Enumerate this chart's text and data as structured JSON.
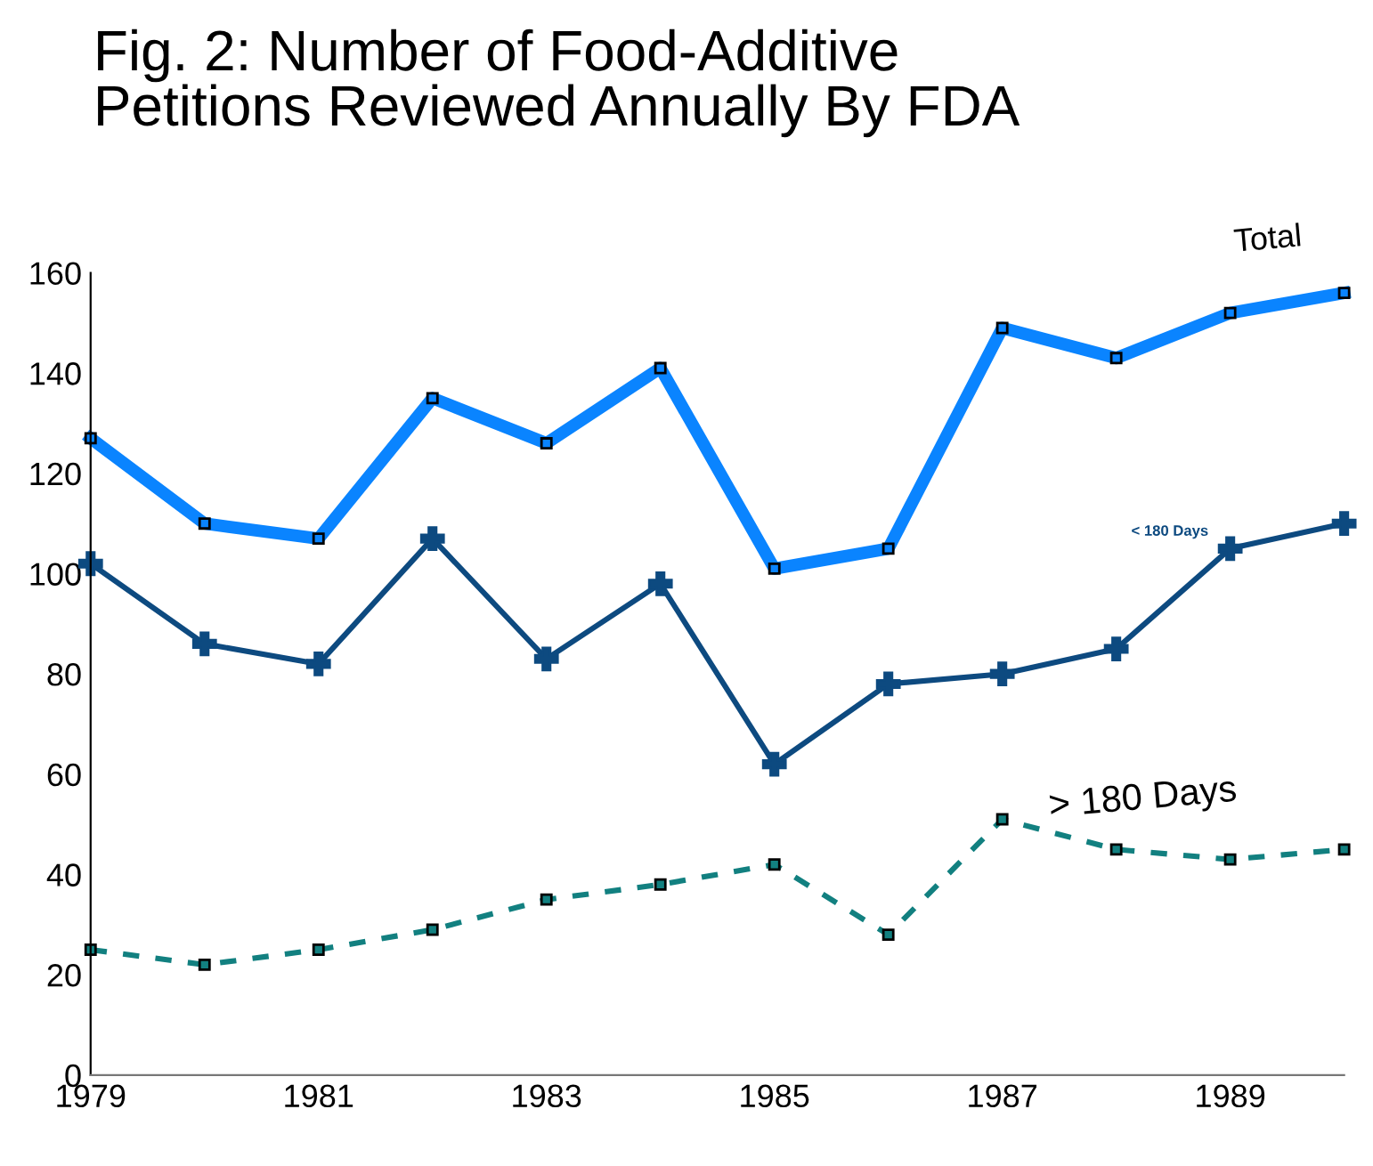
{
  "chart_data": {
    "type": "line",
    "title": "Fig. 2: Number of Food-Additive\nPetitions Reviewed Annually By FDA",
    "x": [
      1979,
      1980,
      1981,
      1982,
      1983,
      1984,
      1985,
      1986,
      1987,
      1988,
      1989,
      1990
    ],
    "series": [
      {
        "name": "Total",
        "color": "#0a84ff",
        "marker": "square",
        "line_style": "solid",
        "values": [
          127,
          110,
          107,
          135,
          126,
          141,
          101,
          105,
          149,
          143,
          152,
          156
        ]
      },
      {
        "name": "< 180 Days",
        "color": "#0d4a80",
        "marker": "cross",
        "line_style": "solid",
        "values": [
          102,
          86,
          82,
          107,
          83,
          98,
          62,
          78,
          80,
          85,
          105,
          110
        ]
      },
      {
        "name": "> 180 Days",
        "color": "#128080",
        "marker": "square",
        "line_style": "dashed",
        "values": [
          25,
          22,
          25,
          29,
          35,
          38,
          42,
          28,
          51,
          45,
          43,
          45
        ]
      }
    ],
    "xlim": [
      1979,
      1990
    ],
    "xticks": [
      1979,
      1981,
      1983,
      1985,
      1987,
      1989
    ],
    "ylim": [
      0,
      160
    ],
    "yticks": [
      0,
      20,
      40,
      60,
      80,
      100,
      120,
      140,
      160
    ],
    "grid": false,
    "legend": false
  }
}
